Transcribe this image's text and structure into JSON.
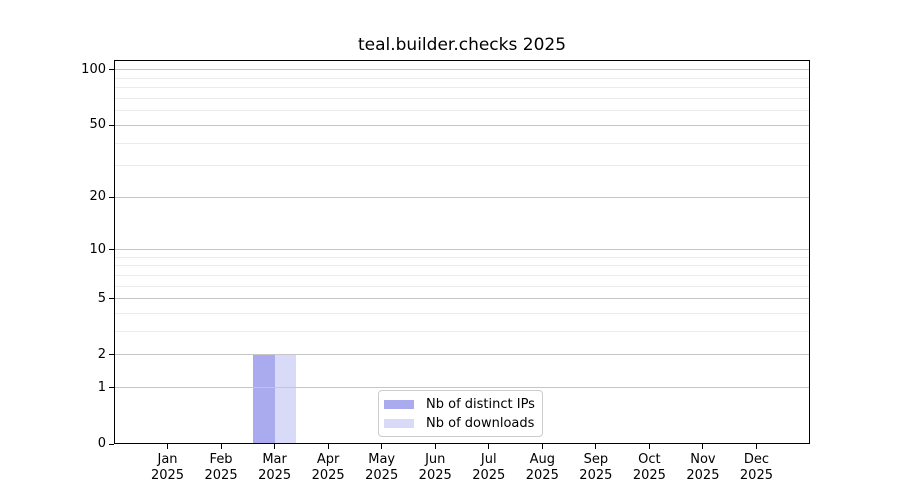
{
  "chart_data": {
    "type": "bar",
    "title": "teal.builder.checks 2025",
    "x": {
      "months": [
        "Jan",
        "Feb",
        "Mar",
        "Apr",
        "May",
        "Jun",
        "Jul",
        "Aug",
        "Sep",
        "Oct",
        "Nov",
        "Dec"
      ],
      "year": "2025"
    },
    "y": {
      "scale": "log10(1+v)",
      "major_ticks": [
        0,
        1,
        2,
        5,
        10,
        20,
        50,
        100
      ],
      "minor_ticks": [
        3,
        4,
        6,
        7,
        8,
        9,
        30,
        40,
        60,
        70,
        80,
        90
      ],
      "top_value": 113.25,
      "ylim": [
        0,
        113.25
      ]
    },
    "series": [
      {
        "name": "Nb of distinct IPs",
        "color": "#aaaaee",
        "values": [
          0,
          0,
          2,
          0,
          0,
          0,
          0,
          0,
          0,
          0,
          0,
          0
        ]
      },
      {
        "name": "Nb of downloads",
        "color": "#d9d9f8",
        "values": [
          0,
          0,
          2,
          0,
          0,
          0,
          0,
          0,
          0,
          0,
          0,
          0
        ]
      }
    ],
    "legend": {
      "position": "bottom-center",
      "entries": [
        "Nb of distinct IPs",
        "Nb of downloads"
      ]
    },
    "grid": {
      "enabled": true,
      "major_color": "#c6c6c6",
      "minor_color": "#ebebeb"
    },
    "axis_color": "#000000",
    "background_color": "#ffffff"
  }
}
